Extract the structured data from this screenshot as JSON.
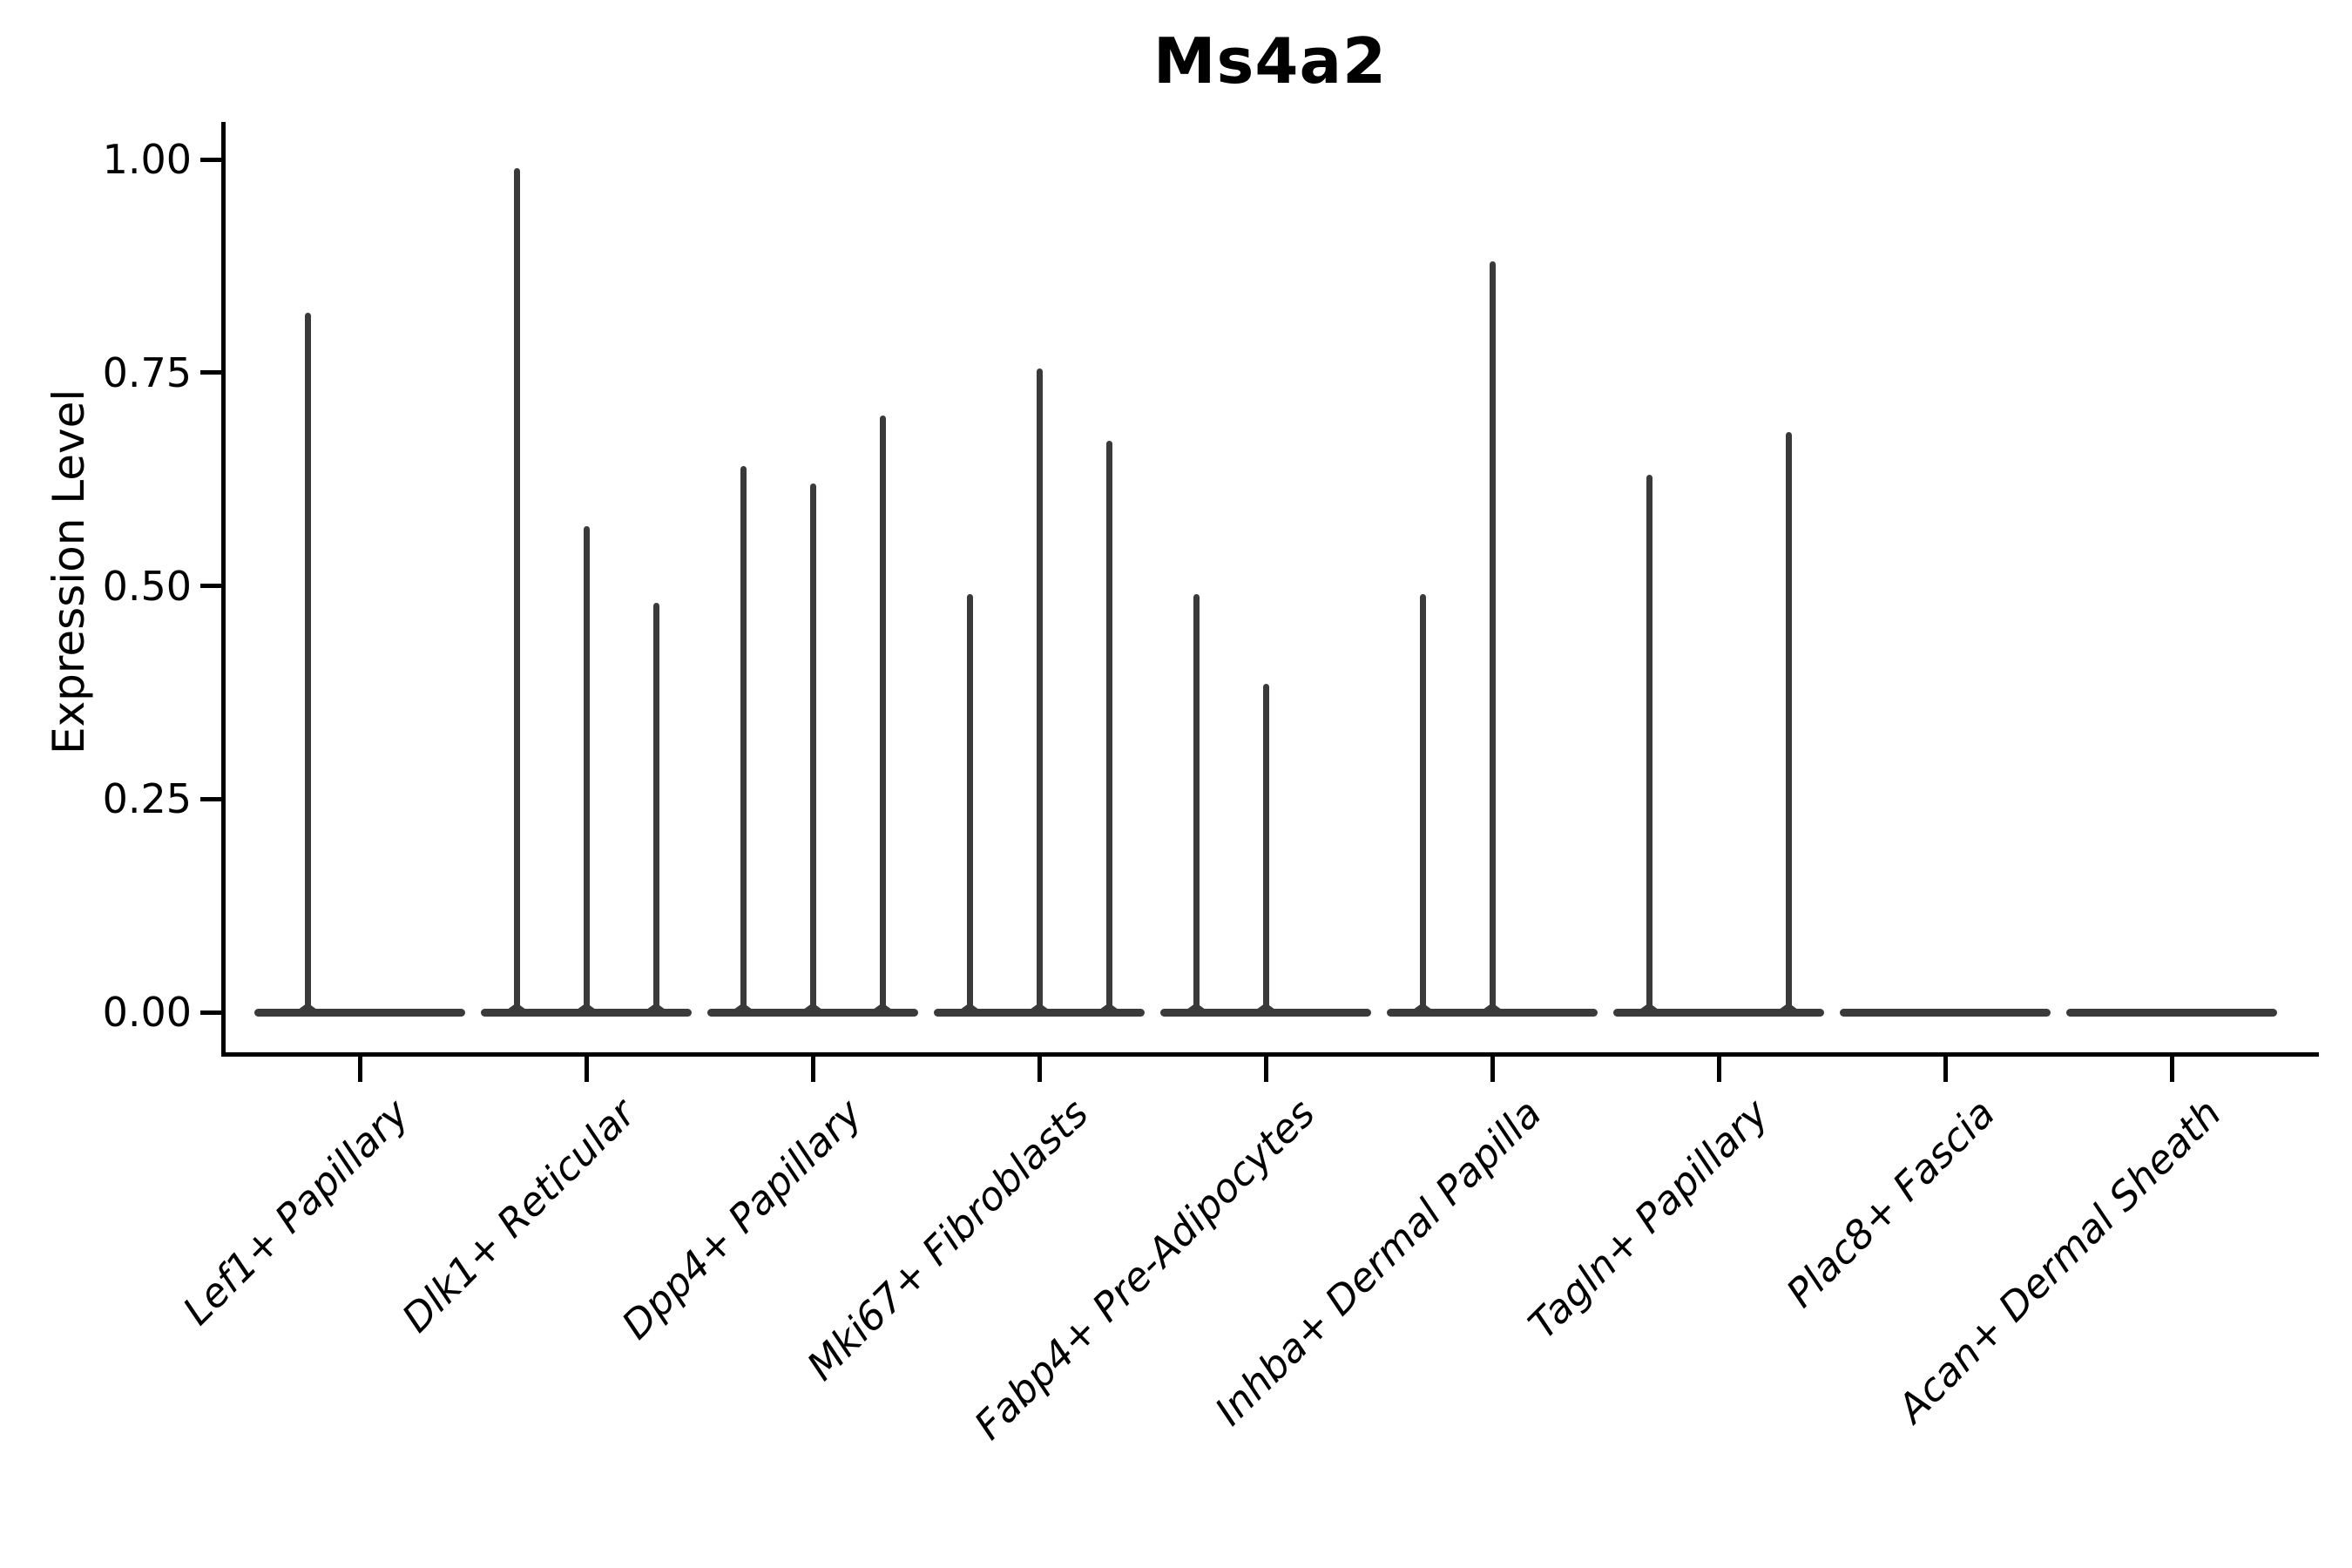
{
  "figure_title": "Ms4a2",
  "chart_data": {
    "type": "violin",
    "title": "Ms4a2",
    "xlabel": "",
    "ylabel": "Expression Level",
    "ylim": [
      0,
      1.05
    ],
    "grid": false,
    "legend": "none",
    "yticks": [
      {
        "label": "0.00",
        "value": 0.0
      },
      {
        "label": "0.25",
        "value": 0.25
      },
      {
        "label": "0.50",
        "value": 0.5
      },
      {
        "label": "0.75",
        "value": 0.75
      },
      {
        "label": "1.00",
        "value": 1.0
      }
    ],
    "categories": [
      {
        "label": "Lef1+ Papillary",
        "violins": 2,
        "spikes": [
          {
            "slot": 0,
            "max": 0.82
          }
        ]
      },
      {
        "label": "Dlk1+ Reticular",
        "violins": 3,
        "spikes": [
          {
            "slot": 0,
            "max": 0.99
          },
          {
            "slot": 1,
            "max": 0.57
          },
          {
            "slot": 2,
            "max": 0.48
          }
        ]
      },
      {
        "label": "Dpp4+ Papillary",
        "violins": 3,
        "spikes": [
          {
            "slot": 0,
            "max": 0.64
          },
          {
            "slot": 1,
            "max": 0.62
          },
          {
            "slot": 2,
            "max": 0.7
          }
        ]
      },
      {
        "label": "Mki67+ Fibroblasts",
        "violins": 3,
        "spikes": [
          {
            "slot": 0,
            "max": 0.49
          },
          {
            "slot": 1,
            "max": 0.755
          },
          {
            "slot": 2,
            "max": 0.67
          }
        ]
      },
      {
        "label": "Fabp4+ Pre-Adipocytes",
        "violins": 3,
        "spikes": [
          {
            "slot": 0,
            "max": 0.49
          },
          {
            "slot": 1,
            "max": 0.385
          }
        ]
      },
      {
        "label": "Inhba+ Dermal Papilla",
        "violins": 3,
        "spikes": [
          {
            "slot": 0,
            "max": 0.49
          },
          {
            "slot": 1,
            "max": 0.88
          }
        ]
      },
      {
        "label": "Tagln+ Papillary",
        "violins": 3,
        "spikes": [
          {
            "slot": 0,
            "max": 0.63
          },
          {
            "slot": 2,
            "max": 0.68
          }
        ]
      },
      {
        "label": "Plac8+ Fascia",
        "violins": 3,
        "spikes": []
      },
      {
        "label": "Acan+ Dermal Sheath",
        "violins": 3,
        "spikes": []
      }
    ],
    "colors": {
      "violin": "#3a3a3a",
      "axis": "#000000",
      "text": "#000000",
      "background": "#ffffff"
    }
  }
}
